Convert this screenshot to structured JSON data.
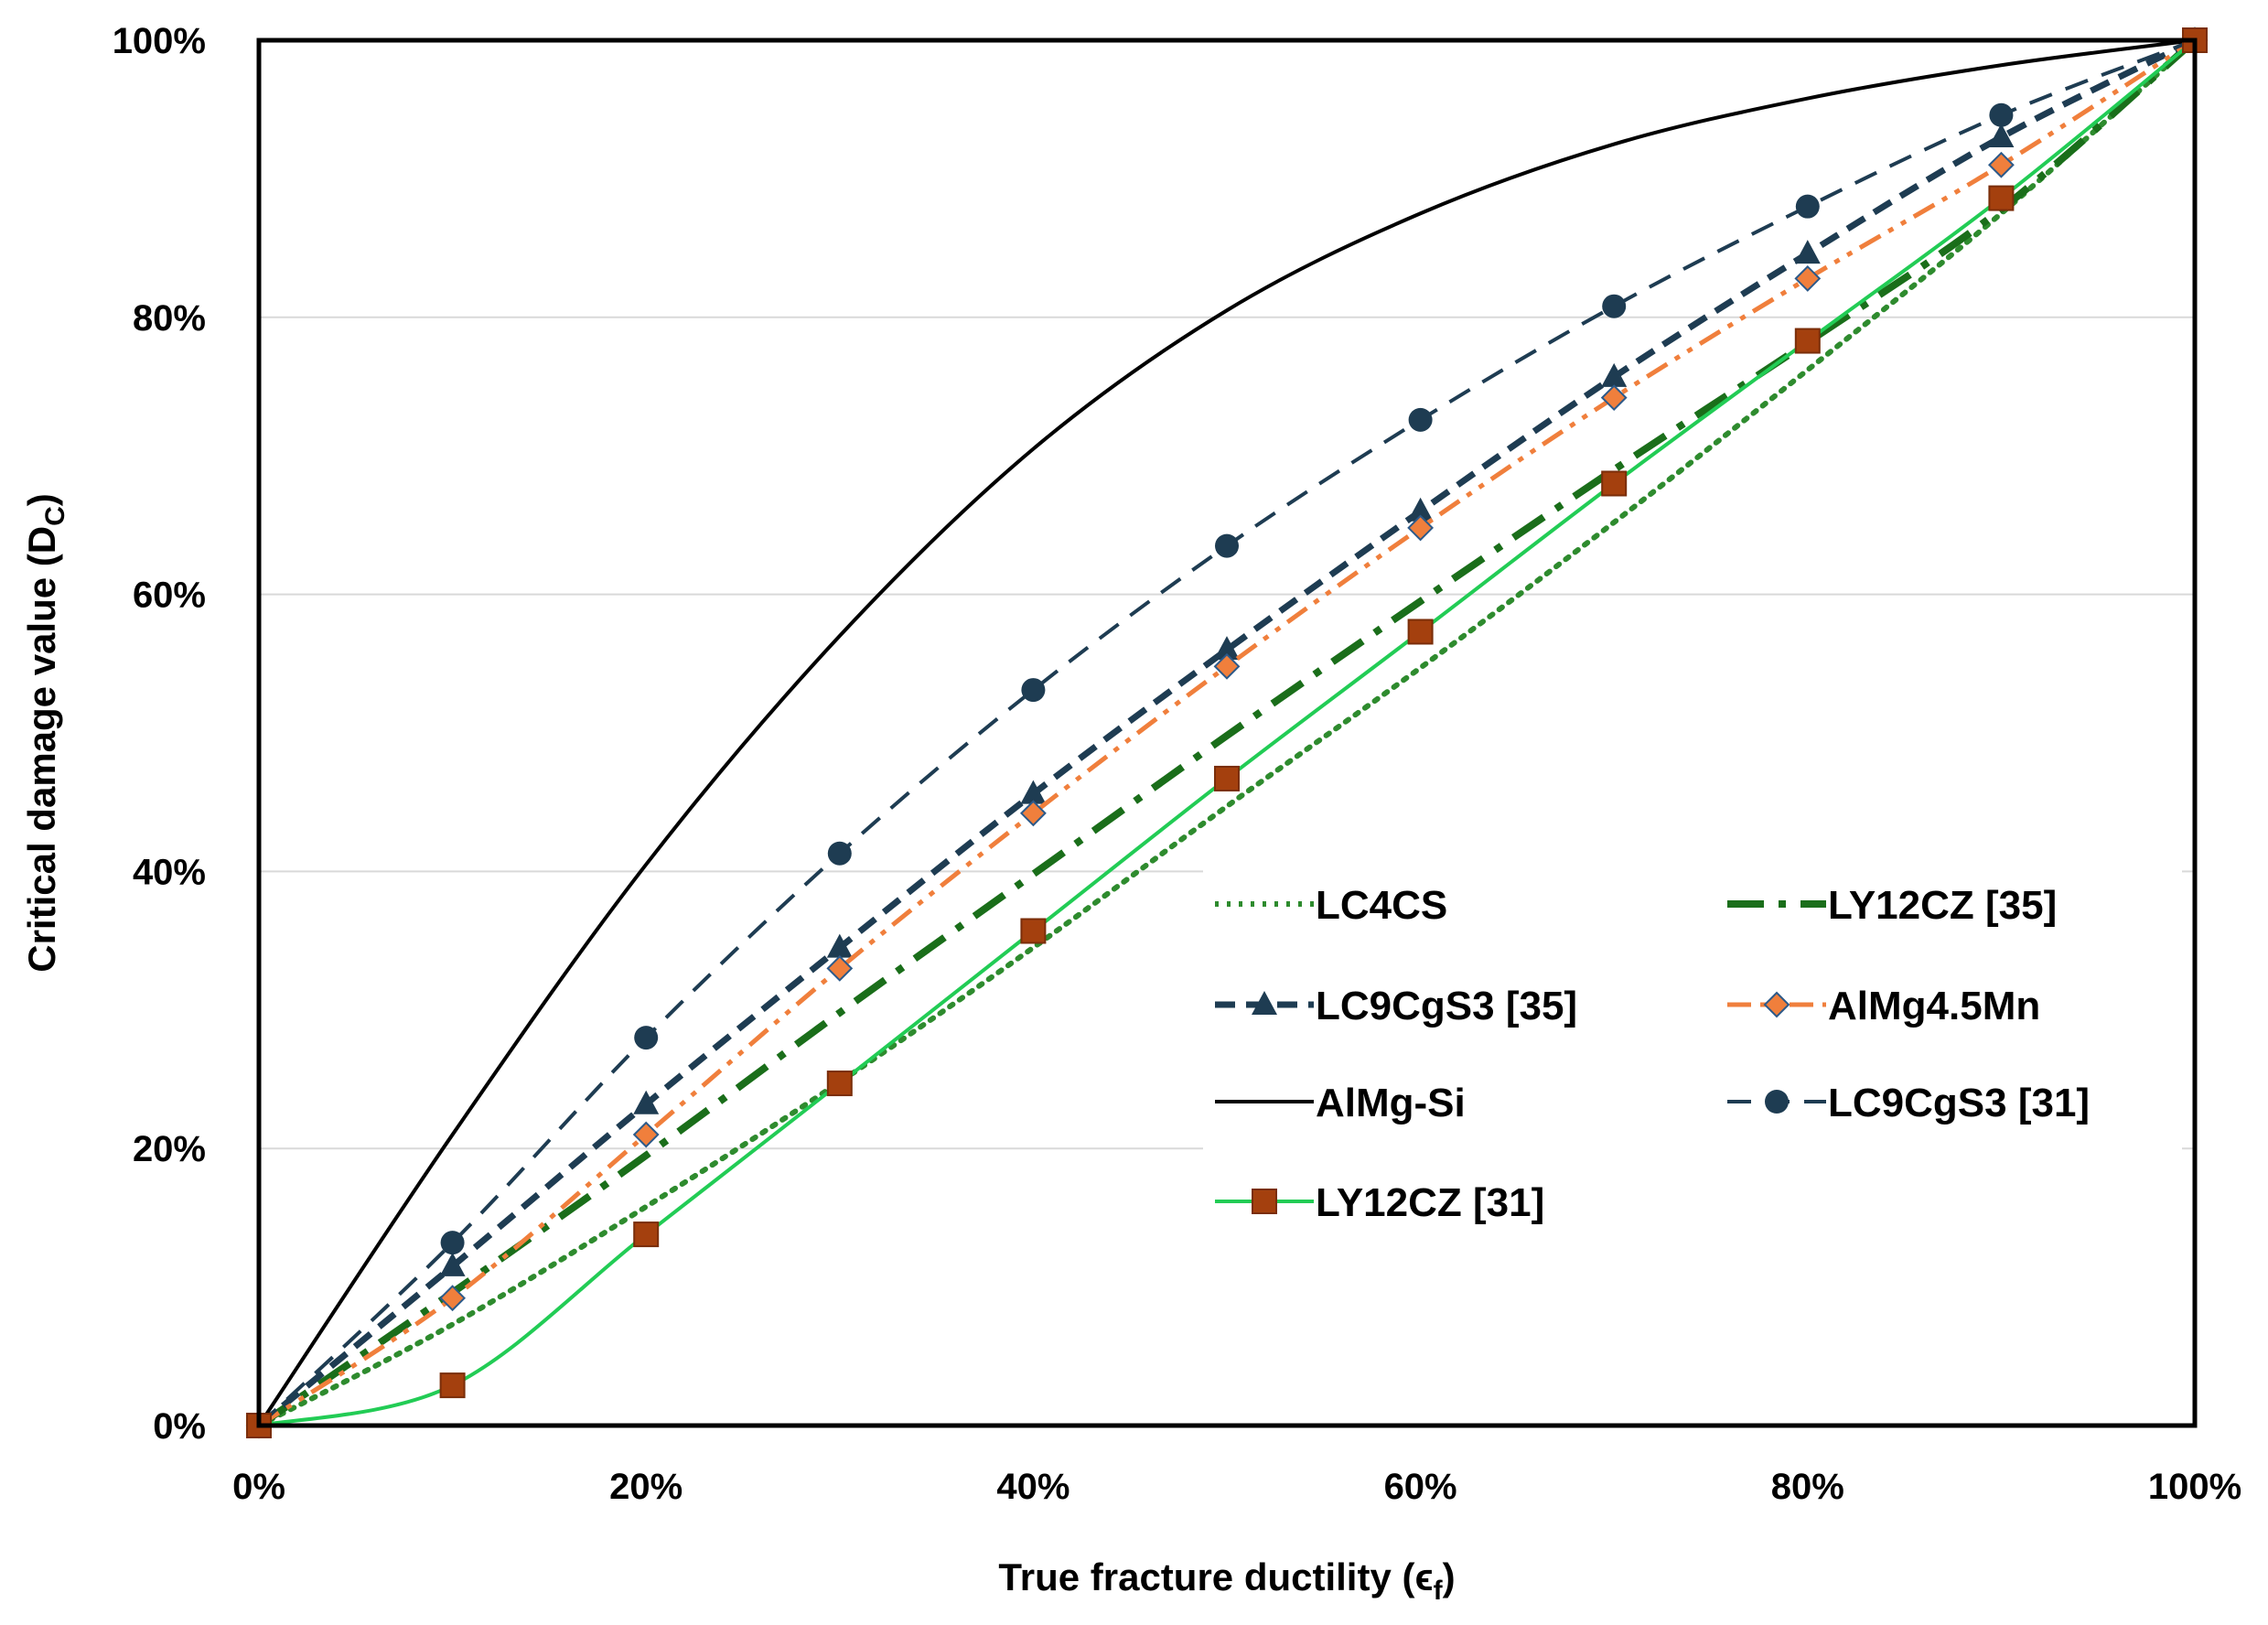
{
  "chart_data": {
    "type": "line",
    "title": "",
    "xlabel": "True fracture ductility (",
    "xlabel_symbol": "ϵ",
    "xlabel_sub": "f",
    "xlabel_end": ")",
    "ylabel": "Critical damage value (D",
    "ylabel_sub": "C",
    "ylabel_end": ")",
    "xlim": [
      0,
      1
    ],
    "ylim": [
      0,
      1
    ],
    "x_ticks": [
      0,
      0.2,
      0.4,
      0.6,
      0.8,
      1.0
    ],
    "x_tick_labels": [
      "0%",
      "20%",
      "40%",
      "60%",
      "80%",
      "100%"
    ],
    "y_ticks": [
      0,
      0.2,
      0.4,
      0.6,
      0.8,
      1.0
    ],
    "y_tick_labels": [
      "0%",
      "20%",
      "40%",
      "60%",
      "80%",
      "100%"
    ],
    "grid": "horizontal",
    "legend_position": "lower-right",
    "x": [
      0,
      0.1,
      0.2,
      0.3,
      0.4,
      0.5,
      0.6,
      0.7,
      0.8,
      0.9,
      1.0
    ],
    "series": [
      {
        "name": "LC4CS",
        "color": "#2e8b2e",
        "dash": "dot",
        "marker": "none",
        "values": [
          0,
          0.073,
          0.158,
          0.248,
          0.345,
          0.447,
          0.547,
          0.652,
          0.762,
          0.875,
          1.0
        ]
      },
      {
        "name": "LY12CZ  [35]",
        "color": "#1a6e1a",
        "dash": "dashdot",
        "marker": "none",
        "values": [
          0,
          0.096,
          0.195,
          0.298,
          0.398,
          0.498,
          0.595,
          0.69,
          0.782,
          0.878,
          1.0
        ]
      },
      {
        "name": "LC9CgS3  [35]",
        "color": "#1e3c52",
        "dash": "dash",
        "marker": "triangle",
        "values": [
          0,
          0.115,
          0.232,
          0.345,
          0.456,
          0.56,
          0.66,
          0.757,
          0.846,
          0.93,
          1.0
        ]
      },
      {
        "name": "AlMg4.5Mn",
        "color": "#f07f3c",
        "dash": "dashdotdot",
        "marker": "diamond",
        "markerFill": "#f07f3c",
        "markerStroke": "#2c5a8a",
        "values": [
          0,
          0.092,
          0.21,
          0.33,
          0.442,
          0.548,
          0.648,
          0.742,
          0.828,
          0.91,
          1.0
        ]
      },
      {
        "name": "AlMg-Si",
        "color": "#000000",
        "dash": "solid",
        "marker": "none",
        "values": [
          0,
          0.21,
          0.405,
          0.57,
          0.705,
          0.805,
          0.875,
          0.925,
          0.958,
          0.982,
          1.0
        ]
      },
      {
        "name": "LC9CgS3  [31]",
        "color": "#1e3c52",
        "dash": "longdash",
        "marker": "circle",
        "values": [
          0,
          0.132,
          0.28,
          0.413,
          0.531,
          0.635,
          0.726,
          0.808,
          0.88,
          0.946,
          1.0
        ]
      },
      {
        "name": "LY12CZ  [31]",
        "color": "#22cc55",
        "dash": "solid",
        "marker": "square",
        "markerFill": "#a4400e",
        "values": [
          0,
          0.029,
          0.138,
          0.247,
          0.357,
          0.467,
          0.573,
          0.68,
          0.783,
          0.886,
          1.0
        ]
      }
    ]
  }
}
